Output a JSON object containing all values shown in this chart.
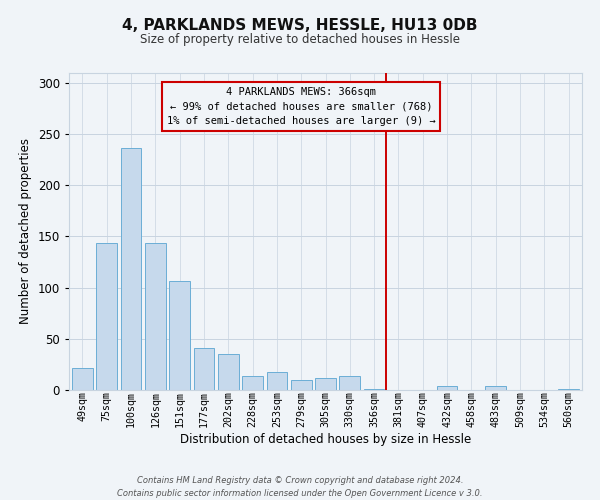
{
  "title": "4, PARKLANDS MEWS, HESSLE, HU13 0DB",
  "subtitle": "Size of property relative to detached houses in Hessle",
  "xlabel": "Distribution of detached houses by size in Hessle",
  "ylabel": "Number of detached properties",
  "bar_labels": [
    "49sqm",
    "75sqm",
    "100sqm",
    "126sqm",
    "151sqm",
    "177sqm",
    "202sqm",
    "228sqm",
    "253sqm",
    "279sqm",
    "305sqm",
    "330sqm",
    "356sqm",
    "381sqm",
    "407sqm",
    "432sqm",
    "458sqm",
    "483sqm",
    "509sqm",
    "534sqm",
    "560sqm"
  ],
  "bar_values": [
    21,
    144,
    236,
    144,
    106,
    41,
    35,
    14,
    18,
    10,
    12,
    14,
    1,
    0,
    0,
    4,
    0,
    4,
    0,
    0,
    1
  ],
  "bar_color": "#c6d9ec",
  "bar_edge_color": "#6baed6",
  "vline_x_index": 12.5,
  "vline_color": "#cc0000",
  "ylim": [
    0,
    310
  ],
  "yticks": [
    0,
    50,
    100,
    150,
    200,
    250,
    300
  ],
  "annotation_title": "4 PARKLANDS MEWS: 366sqm",
  "annotation_line1": "← 99% of detached houses are smaller (768)",
  "annotation_line2": "1% of semi-detached houses are larger (9) →",
  "annotation_box_edge": "#cc0000",
  "footer_line1": "Contains HM Land Registry data © Crown copyright and database right 2024.",
  "footer_line2": "Contains public sector information licensed under the Open Government Licence v 3.0.",
  "background_color": "#f0f4f8",
  "grid_color": "#c8d4e0"
}
